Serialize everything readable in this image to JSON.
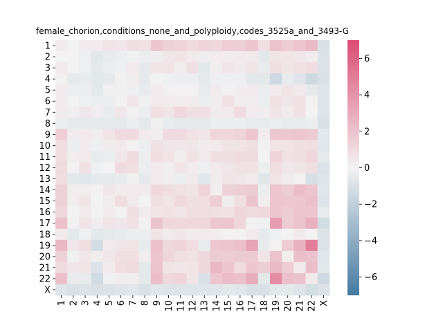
{
  "chart_data": {
    "type": "heatmap",
    "title": "female_chorion,conditions_none_and_polyploidy,codes_3525a_and_3493-G",
    "xlabel": "",
    "ylabel": "",
    "rows": [
      "1",
      "2",
      "3",
      "4",
      "5",
      "6",
      "7",
      "8",
      "9",
      "10",
      "11",
      "12",
      "13",
      "14",
      "15",
      "16",
      "17",
      "18",
      "19",
      "20",
      "21",
      "22",
      "X"
    ],
    "cols": [
      "1",
      "2",
      "3",
      "4",
      "5",
      "6",
      "7",
      "8",
      "9",
      "10",
      "11",
      "12",
      "13",
      "14",
      "15",
      "16",
      "17",
      "18",
      "19",
      "20",
      "21",
      "22",
      "X"
    ],
    "vmin": -7,
    "vmax": 7,
    "colorbar_ticks": [
      -6,
      -4,
      -2,
      0,
      2,
      4,
      6
    ],
    "colorbar_tick_labels": [
      "−6",
      "−4",
      "−2",
      "0",
      "2",
      "4",
      "6"
    ],
    "colormap": {
      "negative": "#4479a0",
      "center": "#f2f2f2",
      "positive": "#db4c73"
    },
    "grid": false,
    "values": [
      [
        0.3,
        0.0,
        0.3,
        0.4,
        0.6,
        0.5,
        0.8,
        0.7,
        1.8,
        1.4,
        1.3,
        1.0,
        1.3,
        1.2,
        1.6,
        1.5,
        1.9,
        0.8,
        2.0,
        1.6,
        1.9,
        2.4,
        -1.0
      ],
      [
        0.0,
        0.0,
        -0.2,
        -0.6,
        -0.4,
        -0.3,
        -0.1,
        -0.3,
        0.2,
        0.5,
        0.6,
        0.4,
        0.2,
        0.3,
        0.3,
        0.4,
        0.4,
        -0.6,
        0.6,
        0.6,
        0.5,
        0.3,
        -0.9
      ],
      [
        0.4,
        0.0,
        -0.2,
        -0.5,
        -0.3,
        -0.2,
        0.4,
        -0.5,
        0.6,
        0.6,
        0.2,
        0.8,
        -0.6,
        0.2,
        0.5,
        0.4,
        0.6,
        -0.4,
        0.8,
        0.6,
        0.7,
        0.9,
        -0.9
      ],
      [
        0.1,
        -0.5,
        -0.4,
        -0.6,
        -0.5,
        -0.1,
        0.2,
        -0.5,
        0.0,
        -0.2,
        -0.3,
        -0.3,
        -0.5,
        -0.2,
        -0.2,
        -0.2,
        -0.6,
        -0.6,
        -1.5,
        -0.4,
        -0.8,
        -1.5,
        -1.0
      ],
      [
        0.3,
        -0.3,
        -0.3,
        -0.6,
        -0.1,
        -0.1,
        -0.2,
        -0.4,
        0.3,
        0.1,
        0.1,
        0.1,
        -0.4,
        0.3,
        0.1,
        0.2,
        0.3,
        -0.3,
        0.3,
        0.6,
        0.4,
        -0.5,
        -0.8
      ],
      [
        0.3,
        0.0,
        -0.2,
        -0.3,
        -0.3,
        0.1,
        0.5,
        -0.1,
        0.4,
        0.3,
        0.2,
        0.3,
        -0.3,
        0.2,
        0.7,
        0.2,
        0.2,
        -0.3,
        0.7,
        0.5,
        0.7,
        0.1,
        -0.8
      ],
      [
        0.3,
        0.2,
        0.5,
        0.2,
        -0.4,
        0.5,
        0.1,
        -0.3,
        0.8,
        0.6,
        1.2,
        0.8,
        0.8,
        0.3,
        0.4,
        1.0,
        0.3,
        0.2,
        0.6,
        0.4,
        0.7,
        0.0,
        -0.8
      ],
      [
        -0.3,
        -0.5,
        -0.5,
        -0.5,
        -0.5,
        -0.5,
        -0.3,
        -0.5,
        -0.1,
        -0.4,
        -0.5,
        -0.5,
        -0.5,
        -0.3,
        -0.3,
        -0.3,
        -0.4,
        -0.4,
        -0.3,
        -0.4,
        -0.4,
        -0.3,
        -1.0
      ],
      [
        1.5,
        0.3,
        0.4,
        0.2,
        0.6,
        1.0,
        1.0,
        0.4,
        0.2,
        1.0,
        1.0,
        0.7,
        0.5,
        1.2,
        1.2,
        1.3,
        1.9,
        0.3,
        1.8,
        1.8,
        1.9,
        1.7,
        -0.6
      ],
      [
        0.9,
        -0.3,
        0.3,
        -0.2,
        0.3,
        0.4,
        0.1,
        -0.3,
        0.7,
        0.5,
        0.5,
        0.5,
        0.3,
        0.4,
        0.6,
        0.6,
        0.8,
        -0.1,
        0.6,
        0.6,
        0.8,
        0.9,
        -0.7
      ],
      [
        0.9,
        0.2,
        0.4,
        -0.4,
        -0.3,
        0.5,
        1.0,
        -0.3,
        0.9,
        0.6,
        0.2,
        0.7,
        0.4,
        0.8,
        0.8,
        1.0,
        1.0,
        0.0,
        1.3,
        0.7,
        0.8,
        1.2,
        -0.5
      ],
      [
        1.0,
        0.1,
        0.7,
        -0.2,
        0.0,
        1.0,
        0.8,
        -0.3,
        0.4,
        0.2,
        0.6,
        0.3,
        -0.2,
        0.4,
        0.5,
        0.7,
        0.7,
        -0.3,
        0.9,
        0.5,
        0.6,
        0.8,
        -0.9
      ],
      [
        0.9,
        -0.6,
        -0.7,
        -0.5,
        -0.5,
        -0.4,
        -0.1,
        -0.5,
        0.4,
        0.2,
        -0.3,
        0.4,
        -0.7,
        0.3,
        0.6,
        0.5,
        0.4,
        -0.7,
        0.6,
        0.3,
        0.1,
        -1.1,
        -0.8
      ],
      [
        1.4,
        0.2,
        0.2,
        0.1,
        0.5,
        0.3,
        0.4,
        0.3,
        1.1,
        0.9,
        0.7,
        0.6,
        1.3,
        0.2,
        1.4,
        1.5,
        1.7,
        -0.3,
        1.9,
        1.6,
        2.3,
        1.9,
        -0.7
      ],
      [
        1.4,
        0.2,
        0.6,
        0.0,
        0.2,
        0.9,
        0.4,
        0.0,
        0.8,
        0.6,
        1.1,
        0.8,
        0.9,
        1.5,
        0.2,
        0.8,
        2.0,
        0.2,
        1.9,
        1.8,
        1.8,
        2.1,
        -0.8
      ],
      [
        1.2,
        0.0,
        0.4,
        0.0,
        0.3,
        0.1,
        0.8,
        0.3,
        0.6,
        0.7,
        0.5,
        0.9,
        0.9,
        0.8,
        0.7,
        1.2,
        1.0,
        1.1,
        1.9,
        1.6,
        1.9,
        1.9,
        -0.4
      ],
      [
        2.1,
        0.1,
        0.6,
        0.2,
        0.6,
        0.5,
        0.7,
        0.1,
        2.0,
        1.1,
        1.1,
        1.1,
        1.2,
        1.8,
        1.9,
        1.2,
        0.1,
        -0.1,
        3.6,
        1.6,
        2.0,
        2.8,
        -1.3
      ],
      [
        0.4,
        -0.6,
        -0.2,
        -0.6,
        -0.5,
        -0.4,
        -0.3,
        -0.3,
        0.6,
        0.4,
        0.5,
        0.3,
        0.3,
        0.2,
        0.1,
        0.1,
        0.4,
        -0.5,
        -0.2,
        0.0,
        0.4,
        0.1,
        -0.9
      ],
      [
        2.5,
        0.5,
        0.9,
        -1.3,
        0.4,
        0.5,
        0.6,
        -0.4,
        2.1,
        1.1,
        1.3,
        0.9,
        -0.4,
        1.8,
        1.9,
        2.1,
        3.3,
        -0.4,
        0.1,
        1.6,
        2.7,
        4.9,
        -0.9
      ],
      [
        1.4,
        -0.1,
        0.5,
        0.2,
        0.5,
        0.8,
        0.8,
        0.2,
        1.9,
        1.2,
        0.8,
        0.7,
        1.1,
        1.7,
        1.6,
        1.7,
        1.7,
        0.6,
        2.0,
        0.2,
        2.1,
        2.0,
        -0.7
      ],
      [
        1.0,
        0.5,
        0.6,
        -0.9,
        0.3,
        0.9,
        1.0,
        -0.6,
        2.0,
        0.6,
        0.5,
        0.6,
        1.1,
        2.5,
        1.8,
        1.0,
        1.8,
        1.5,
        2.4,
        1.6,
        0.3,
        2.2,
        -0.6
      ],
      [
        2.2,
        -0.4,
        -0.4,
        -1.4,
        -0.2,
        0.2,
        0.2,
        -0.6,
        2.2,
        1.1,
        1.3,
        0.6,
        -1.0,
        1.9,
        2.3,
        2.1,
        2.9,
        -0.6,
        4.2,
        2.1,
        2.0,
        0.4,
        -1.5
      ],
      [
        -0.8,
        -1.0,
        -0.9,
        -1.0,
        -0.9,
        -0.8,
        -0.7,
        -1.0,
        -0.7,
        -0.8,
        -0.8,
        -0.8,
        -0.8,
        -0.7,
        -0.6,
        -0.7,
        -1.0,
        -1.0,
        -0.6,
        -0.6,
        -0.8,
        -1.3,
        -0.9
      ]
    ]
  }
}
